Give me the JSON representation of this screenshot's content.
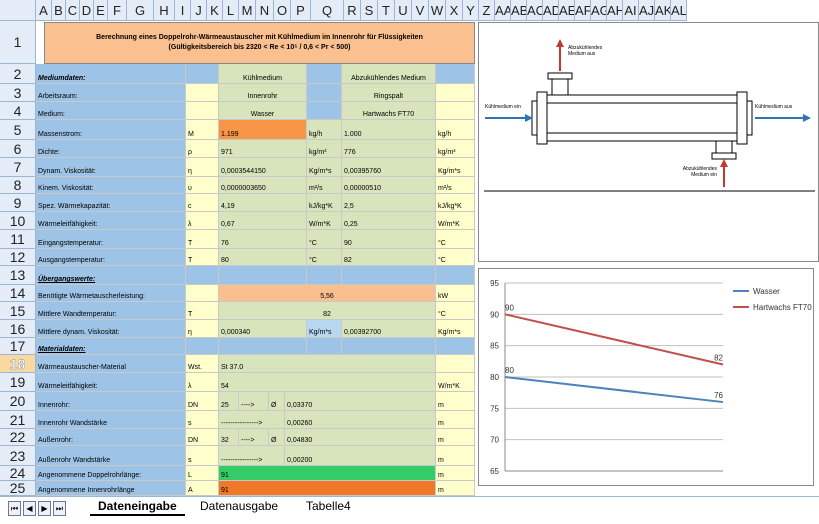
{
  "columns": [
    "A",
    "B",
    "C",
    "D",
    "E",
    "F",
    "G",
    "H",
    "I",
    "J",
    "K",
    "L",
    "M",
    "N",
    "O",
    "P",
    "Q",
    "R",
    "S",
    "T",
    "U",
    "V",
    "W",
    "X",
    "Y",
    "Z",
    "AA",
    "AB",
    "AC",
    "AD",
    "AE",
    "AF",
    "AG",
    "AH",
    "AI",
    "AJ",
    "AK",
    "AL"
  ],
  "rows": [
    "1",
    "2",
    "3",
    "4",
    "5",
    "6",
    "7",
    "8",
    "9",
    "10",
    "11",
    "12",
    "13",
    "14",
    "15",
    "16",
    "17",
    "18",
    "19",
    "20",
    "21",
    "22",
    "23",
    "24",
    "25"
  ],
  "selected_row": "18",
  "title_lines": [
    "Berechnung eines Doppelrohr-Wärmeaustauscher mit Kühlmedium im Innenrohr für Flüssigkeiten",
    "(Gültigkeitsbereich bis  2320 < Re < 10⁵ /   0,6 < Pr < 500)"
  ],
  "sheet": {
    "r2": {
      "a": "Mediumdaten:",
      "i": "Kühlmedium",
      "o": "Abzukühlendes Medium"
    },
    "r3": {
      "a": "Arbeitsraum:",
      "i": "Innenrohr",
      "o": "Ringspalt"
    },
    "r4": {
      "a": "Medium:",
      "i": "Wasser",
      "o": "Hartwachs FT70"
    },
    "r5": {
      "a": "Massenstrom:",
      "h": "M",
      "i": "1.199",
      "l": "kg/h",
      "o": "1.000",
      "r": "kg/h"
    },
    "r6": {
      "a": "Dichte:",
      "h": "ρ",
      "i": "971",
      "l": "kg/m³",
      "o": "776",
      "r": "kg/m³"
    },
    "r7": {
      "a": "Dynam. Viskosität:",
      "h": "η",
      "i": "0,0003544150",
      "l": "Kg/m*s",
      "o": "0,00395760",
      "r": "Kg/m*s"
    },
    "r8": {
      "a": "Kinem. Viskosität:",
      "h": "υ",
      "i": "0,0000003650",
      "l": "m²/s",
      "o": "0,00000510",
      "r": "m²/s"
    },
    "r9": {
      "a": "Spez. Wärmekapazität:",
      "h": "c",
      "i": "4,19",
      "l": "kJ/kg*K",
      "o": "2,5",
      "r": "kJ/kg*K"
    },
    "r10": {
      "a": "Wärmeleitfähigkeit:",
      "h": "λ",
      "i": "0,67",
      "l": "W/m*K",
      "o": "0,25",
      "r": "W/m*K"
    },
    "r11": {
      "a": "Eingangstemperatur:",
      "h": "T",
      "i": "76",
      "l": "°C",
      "o": "90",
      "r": "°C"
    },
    "r12": {
      "a": "Ausgangstemperatur:",
      "h": "T",
      "i": "80",
      "l": "°C",
      "o": "82",
      "r": "°C"
    },
    "r13": {
      "a": "Übergangswerte:"
    },
    "r14": {
      "a": "Benötigte Wärmetauscherleistung:",
      "val": "5,56",
      "r": "kW"
    },
    "r15": {
      "a": "Mittlere Wandtemperatur:",
      "h": "T",
      "val": "82",
      "r": "°C"
    },
    "r16": {
      "a": "Mittlere dynam. Viskosität:",
      "h": "η",
      "i": "0,000340",
      "l": "Kg/m*s",
      "o": "0,00392700",
      "r": "Kg/m*s"
    },
    "r17": {
      "a": "Materialdaten:"
    },
    "r18": {
      "a": "Wärmeaustauscher-Material",
      "h": "Wst.",
      "i": "St 37.0"
    },
    "r19": {
      "a": "Wärmeleitfähigkeit:",
      "h": "λ",
      "i": "54",
      "r": "W/m*K"
    },
    "r20": {
      "a": "Innenrohr:",
      "h": "DN",
      "i": "25",
      "j": "---->",
      "k": "Ø",
      "l": "0,03370",
      "r": "m"
    },
    "r21": {
      "a": "Innenrohr Wandstärke",
      "h": "s",
      "i": "---------------->",
      "l": "0,00260",
      "r": "m"
    },
    "r22": {
      "a": "Außenrohr:",
      "h": "DN",
      "i": "32",
      "j": "---->",
      "k": "Ø",
      "l": "0,04830",
      "r": "m"
    },
    "r23": {
      "a": "Außenrohr Wandstärke",
      "h": "s",
      "i": "---------------->",
      "l": "0,00200",
      "r": "m"
    },
    "r24": {
      "a": "Angenommene Doppelrohrlänge:",
      "h": "L",
      "i": "91",
      "r": "m"
    },
    "r25": {
      "a": "Angenommene Innenrohrlänge",
      "h": "A",
      "i": "91",
      "r": "m"
    }
  },
  "diagram": {
    "top_label": "Abzukühlendes Medium aus",
    "bottom_label": "Abzukühlendes Medium ein",
    "left_label": "Kühlmedium ein",
    "right_label": "Kühlmedium aus"
  },
  "chart_data": {
    "type": "line",
    "x": [
      1,
      2
    ],
    "series": [
      {
        "name": "Wasser",
        "values": [
          80,
          76
        ],
        "color": "#4f81bd"
      },
      {
        "name": "Hartwachs FT70",
        "values": [
          90,
          82
        ],
        "color": "#c0504d"
      }
    ],
    "ylim": [
      65,
      95
    ],
    "yticks": [
      65,
      70,
      75,
      80,
      85,
      90,
      95
    ],
    "grid": true,
    "legend": "top-right"
  },
  "tabs": [
    "Dateneingabe",
    "Datenausgabe",
    "Tabelle4"
  ],
  "active_tab": "Dateneingabe"
}
